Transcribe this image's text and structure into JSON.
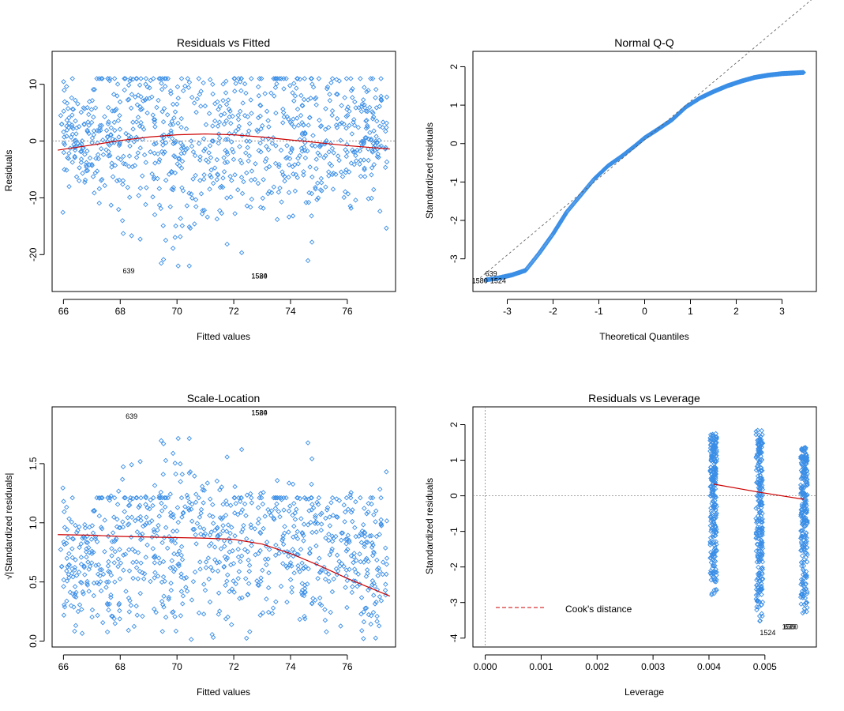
{
  "colors": {
    "points": "#3a8ee6",
    "smooth": "#cc0000",
    "refline": "#888888",
    "axis": "#000000"
  },
  "chart_data": [
    {
      "type": "scatter",
      "title": "Residuals vs Fitted",
      "xlabel": "Fitted values",
      "ylabel": "Residuals",
      "xlim": [
        65.6,
        77.7
      ],
      "ylim": [
        -26.5,
        15.8
      ],
      "xticks": [
        66,
        68,
        70,
        72,
        74,
        76
      ],
      "xtick_labels": [
        "66",
        "68",
        "70",
        "72",
        "74",
        "76"
      ],
      "yticks": [
        -20,
        -10,
        0,
        10
      ],
      "ytick_labels": [
        "-20",
        "-10",
        "0",
        "10"
      ],
      "hline": 0,
      "smooth": {
        "x": [
          65.8,
          67,
          68,
          69,
          70,
          71,
          72,
          73,
          74,
          75,
          76,
          77.5
        ],
        "y": [
          -1.6,
          -0.7,
          0.1,
          0.7,
          1.1,
          1.25,
          1.1,
          0.7,
          0.2,
          -0.3,
          -0.8,
          -1.4
        ]
      },
      "labels": [
        {
          "text": "639",
          "x": 68.3,
          "y": -23.3
        },
        {
          "text": "1524",
          "x": 72.9,
          "y": -24.2
        },
        {
          "text": "1580",
          "x": 72.9,
          "y": -24.2
        }
      ]
    },
    {
      "type": "scatter",
      "title": "Normal Q-Q",
      "xlabel": "Theoretical Quantiles",
      "ylabel": "Standardized residuals",
      "xlim": [
        -3.75,
        3.75
      ],
      "ylim": [
        -3.85,
        2.4
      ],
      "xticks": [
        -3,
        -2,
        -1,
        0,
        1,
        2,
        3
      ],
      "xtick_labels": [
        "-3",
        "-2",
        "-1",
        "0",
        "1",
        "2",
        "3"
      ],
      "yticks": [
        -3,
        -2,
        -1,
        0,
        1,
        2
      ],
      "ytick_labels": [
        "-3",
        "-2",
        "-1",
        "0",
        "1",
        "2"
      ],
      "qq": {
        "x": [
          -3.47,
          -3.2,
          -2.9,
          -2.6,
          -2.3,
          -2.0,
          -1.7,
          -1.4,
          -1.1,
          -0.8,
          -0.5,
          -0.2,
          0,
          0.3,
          0.6,
          0.9,
          1.2,
          1.5,
          1.8,
          2.1,
          2.4,
          2.7,
          3.0,
          3.47
        ],
        "y": [
          -3.55,
          -3.5,
          -3.42,
          -3.3,
          -2.85,
          -2.35,
          -1.78,
          -1.35,
          -0.92,
          -0.58,
          -0.33,
          -0.05,
          0.15,
          0.38,
          0.62,
          0.95,
          1.18,
          1.35,
          1.5,
          1.62,
          1.72,
          1.78,
          1.82,
          1.85
        ]
      },
      "refline": {
        "intercept": 0.1,
        "slope": 1.0
      },
      "labels": [
        {
          "text": "639",
          "x": -3.35,
          "y": -3.45
        },
        {
          "text": "1524",
          "x": -3.2,
          "y": -3.63
        },
        {
          "text": "1580",
          "x": -3.6,
          "y": -3.63
        }
      ]
    },
    {
      "type": "scatter",
      "title": "Scale-Location",
      "xlabel": "Fitted values",
      "ylabel": "√|Standardized residuals|",
      "xlim": [
        65.6,
        77.7
      ],
      "ylim": [
        -0.05,
        1.98
      ],
      "xticks": [
        66,
        68,
        70,
        72,
        74,
        76
      ],
      "xtick_labels": [
        "66",
        "68",
        "70",
        "72",
        "74",
        "76"
      ],
      "yticks": [
        0.0,
        0.5,
        1.0,
        1.5
      ],
      "ytick_labels": [
        "0.0",
        "0.5",
        "1.0",
        "1.5"
      ],
      "smooth": {
        "x": [
          65.8,
          67,
          68,
          69,
          70,
          71,
          72,
          73,
          74,
          75,
          76,
          77.5
        ],
        "y": [
          0.9,
          0.895,
          0.885,
          0.88,
          0.875,
          0.87,
          0.86,
          0.82,
          0.74,
          0.64,
          0.53,
          0.38
        ]
      },
      "labels": [
        {
          "text": "639",
          "x": 68.4,
          "y": 1.88
        },
        {
          "text": "1524",
          "x": 72.9,
          "y": 1.91
        },
        {
          "text": "1580",
          "x": 72.9,
          "y": 1.91
        }
      ]
    },
    {
      "type": "scatter",
      "title": "Residuals vs Leverage",
      "xlabel": "Leverage",
      "ylabel": "Standardized residuals",
      "xlim": [
        -0.00022,
        0.00592
      ],
      "ylim": [
        -4.25,
        2.5
      ],
      "xticks": [
        0.0,
        0.001,
        0.002,
        0.003,
        0.004,
        0.005
      ],
      "xtick_labels": [
        "0.000",
        "0.001",
        "0.002",
        "0.003",
        "0.004",
        "0.005"
      ],
      "yticks": [
        -4,
        -3,
        -2,
        -1,
        0,
        1,
        2
      ],
      "ytick_labels": [
        "-4",
        "-3",
        "-2",
        "-1",
        "0",
        "1",
        "2"
      ],
      "hline": 0,
      "vline": 0,
      "columns": [
        {
          "x": 0.00408,
          "ymin": -2.85,
          "ymax": 1.75
        },
        {
          "x": 0.0049,
          "ymin": -3.6,
          "ymax": 1.85
        },
        {
          "x": 0.0057,
          "ymin": -3.45,
          "ymax": 1.38
        }
      ],
      "smooth": {
        "x": [
          0.00408,
          0.0049,
          0.0057
        ],
        "y": [
          0.33,
          0.1,
          -0.1
        ]
      },
      "legend": {
        "label": "Cook's distance",
        "position": "bottom-left"
      },
      "labels": [
        {
          "text": "1524",
          "x": 0.00505,
          "y": -3.92
        },
        {
          "text": "639",
          "x": 0.00545,
          "y": -3.75
        },
        {
          "text": "1580",
          "x": 0.00545,
          "y": -3.75
        }
      ]
    }
  ]
}
